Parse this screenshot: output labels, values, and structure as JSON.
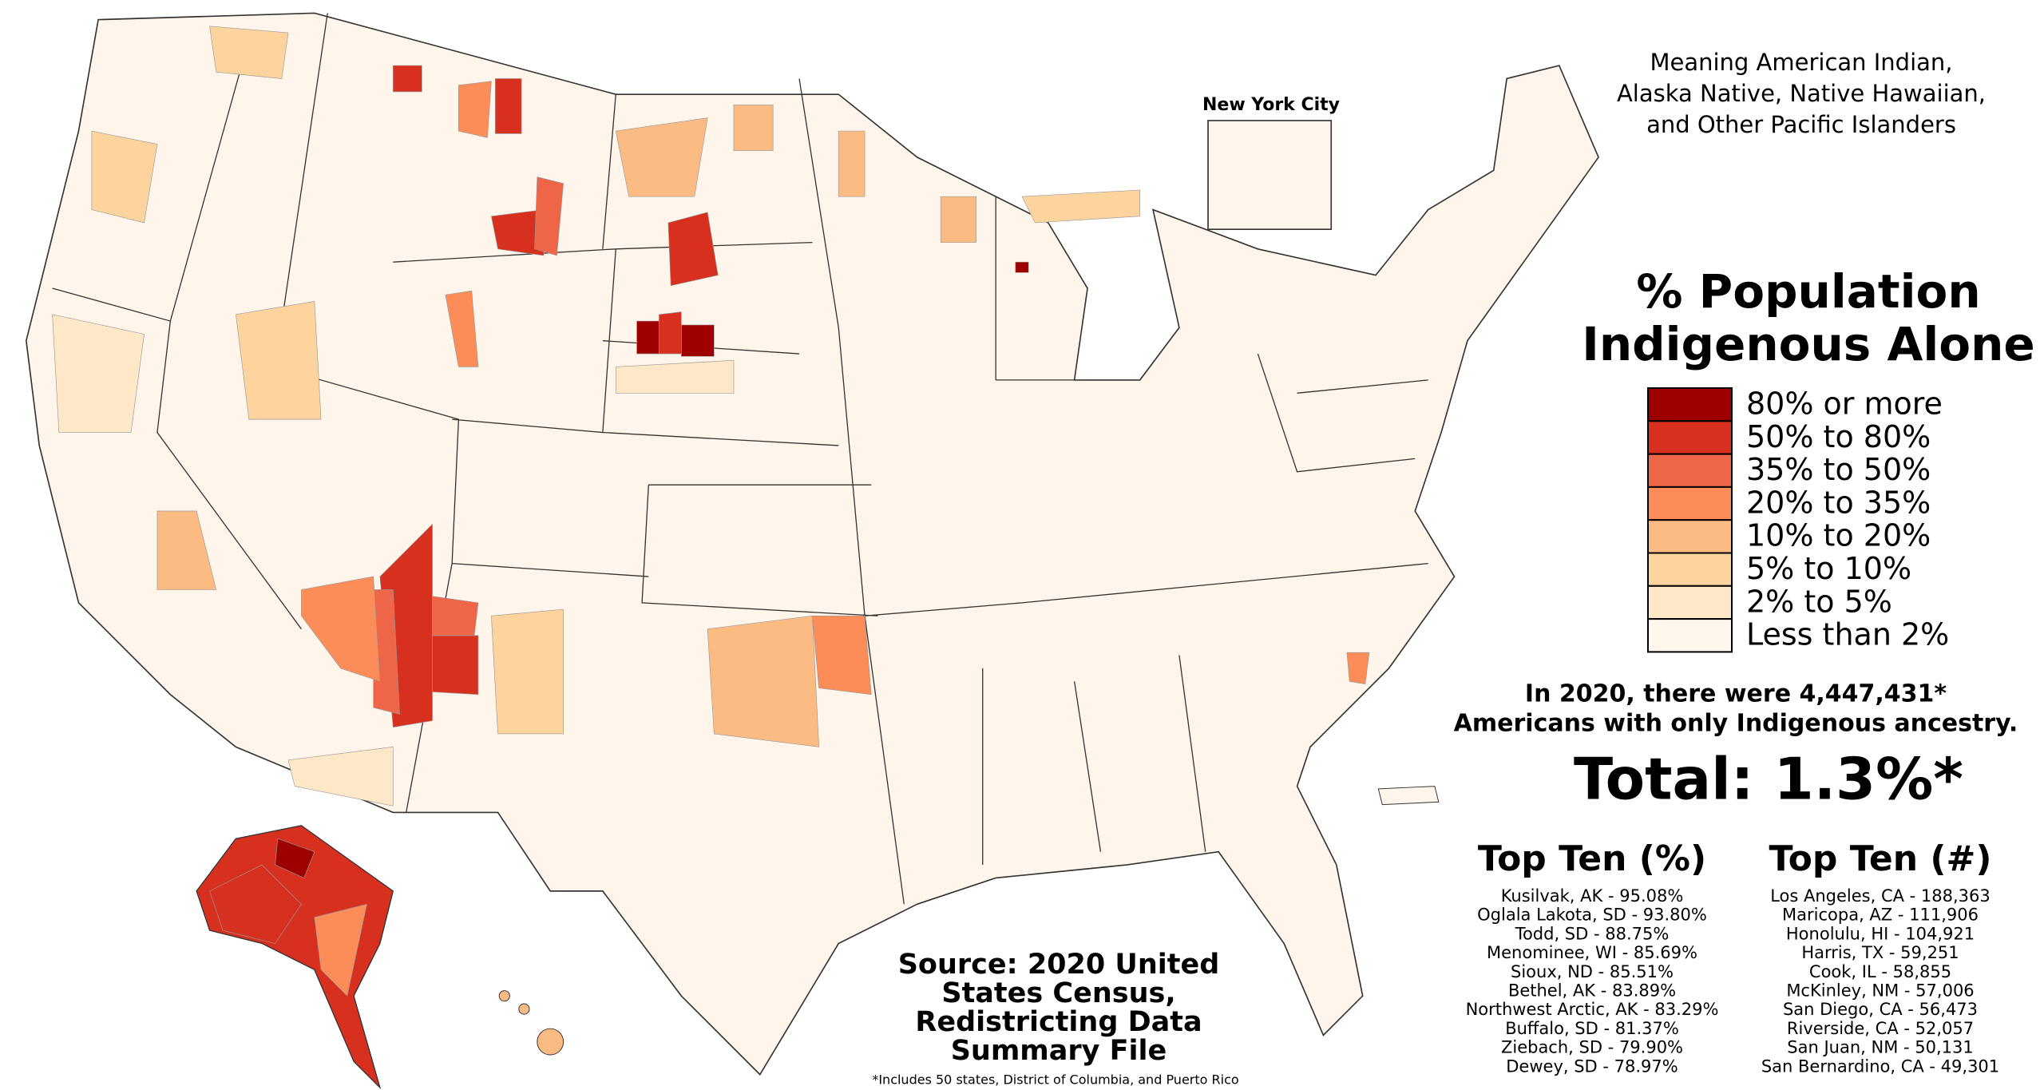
{
  "inset_label": "New York City",
  "subtitle": [
    "Meaning American Indian,",
    "Alaska Native, Native Hawaiian,",
    "and Other Pacific Islanders"
  ],
  "title": [
    "% Population",
    "Indigenous Alone"
  ],
  "legend": [
    {
      "label": "80% or more",
      "color": "#9e0000"
    },
    {
      "label": "50% to 80%",
      "color": "#d7301f"
    },
    {
      "label": "35% to 50%",
      "color": "#ef6548"
    },
    {
      "label": "20% to 35%",
      "color": "#fc8d59"
    },
    {
      "label": "10% to 20%",
      "color": "#fdbb84"
    },
    {
      "label": "5% to 10%",
      "color": "#fdd49e"
    },
    {
      "label": "2% to 5%",
      "color": "#fee8c8"
    },
    {
      "label": "Less than 2%",
      "color": "#fff7ec"
    }
  ],
  "summary": [
    "In 2020, there were 4,447,431*",
    "Americans with only Indigenous ancestry."
  ],
  "total": "Total: 1.3%*",
  "top_ten_percent": {
    "title": "Top Ten (%)",
    "items": [
      "Kusilvak, AK - 95.08%",
      "Oglala Lakota, SD - 93.80%",
      "Todd, SD - 88.75%",
      "Menominee, WI - 85.69%",
      "Sioux, ND - 85.51%",
      "Bethel, AK - 83.89%",
      "Northwest Arctic, AK - 83.29%",
      "Buffalo, SD - 81.37%",
      "Ziebach, SD - 79.90%",
      "Dewey, SD - 78.97%"
    ]
  },
  "top_ten_count": {
    "title": "Top Ten (#)",
    "items": [
      "Los Angeles, CA - 188,363",
      "Maricopa, AZ - 111,906",
      "Honolulu, HI - 104,921",
      "Harris, TX - 59,251",
      "Cook, IL - 58,855",
      "McKinley, NM - 57,006",
      "San Diego, CA - 56,473",
      "Riverside, CA - 52,057",
      "San Juan, NM - 50,131",
      "San Bernardino, CA - 49,301"
    ]
  },
  "source": [
    "Source: 2020 United",
    "States Census,",
    "Redistricting Data",
    "Summary File"
  ],
  "footnote": "*Includes 50 states, District of Columbia, and Puerto Rico"
}
